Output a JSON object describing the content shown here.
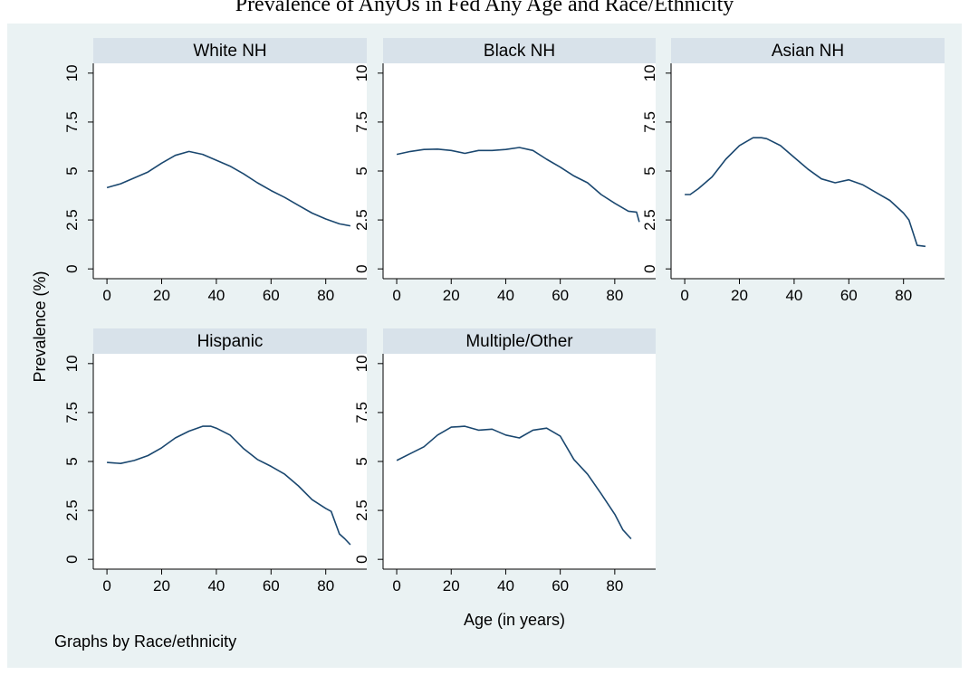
{
  "figure": {
    "title": "Prevalence of AnyOs in Fed Any Age and Race/Ethnicity",
    "ylabel": "Prevalence (%)",
    "xlabel": "Age (in years)",
    "note": "Graphs by Race/ethnicity",
    "colors": {
      "outer_bg": "#eaf2f3",
      "plot_bg": "#ffffff",
      "header_bg": "#d8e2ea",
      "line": "#1a476f",
      "axis": "#000000"
    }
  },
  "chart_data": {
    "type": "line",
    "layout": "facet-grid",
    "x_ticks": [
      "0",
      "20",
      "40",
      "60",
      "80"
    ],
    "y_ticks": [
      "0",
      "2.5",
      "5",
      "7.5",
      "10"
    ],
    "xlim": [
      -5,
      95
    ],
    "ylim": [
      -0.5,
      10.5
    ],
    "grid": false,
    "panels": [
      {
        "name": "White NH",
        "x": [
          0,
          5,
          10,
          15,
          20,
          25,
          30,
          35,
          40,
          45,
          50,
          55,
          60,
          65,
          70,
          75,
          80,
          85,
          89
        ],
        "y": [
          4.15,
          4.35,
          4.65,
          4.95,
          5.4,
          5.8,
          6.0,
          5.85,
          5.55,
          5.25,
          4.85,
          4.4,
          4.0,
          3.65,
          3.25,
          2.85,
          2.55,
          2.3,
          2.2
        ]
      },
      {
        "name": "Black NH",
        "x": [
          0,
          5,
          10,
          15,
          20,
          25,
          30,
          35,
          40,
          45,
          50,
          55,
          60,
          65,
          70,
          75,
          80,
          85,
          88,
          89
        ],
        "y": [
          5.85,
          6.0,
          6.1,
          6.12,
          6.05,
          5.9,
          6.05,
          6.05,
          6.1,
          6.2,
          6.05,
          5.6,
          5.2,
          4.75,
          4.4,
          3.8,
          3.35,
          2.95,
          2.9,
          2.4
        ]
      },
      {
        "name": "Asian NH",
        "x": [
          0,
          2,
          5,
          10,
          15,
          20,
          25,
          28,
          30,
          35,
          40,
          45,
          50,
          55,
          60,
          65,
          70,
          75,
          80,
          82,
          85,
          88
        ],
        "y": [
          3.8,
          3.8,
          4.1,
          4.7,
          5.6,
          6.3,
          6.7,
          6.7,
          6.65,
          6.3,
          5.7,
          5.1,
          4.6,
          4.4,
          4.55,
          4.3,
          3.9,
          3.5,
          2.85,
          2.5,
          1.2,
          1.15
        ]
      },
      {
        "name": "Hispanic",
        "x": [
          0,
          5,
          10,
          15,
          20,
          25,
          30,
          35,
          38,
          40,
          45,
          50,
          55,
          60,
          65,
          70,
          75,
          80,
          82,
          85,
          87,
          89
        ],
        "y": [
          4.95,
          4.9,
          5.05,
          5.3,
          5.7,
          6.2,
          6.55,
          6.8,
          6.8,
          6.7,
          6.35,
          5.65,
          5.1,
          4.75,
          4.35,
          3.75,
          3.05,
          2.6,
          2.45,
          1.3,
          1.05,
          0.75
        ]
      },
      {
        "name": "Multiple/Other",
        "x": [
          0,
          5,
          10,
          15,
          20,
          25,
          30,
          35,
          40,
          45,
          50,
          55,
          60,
          65,
          70,
          75,
          80,
          83,
          86
        ],
        "y": [
          5.05,
          5.4,
          5.75,
          6.35,
          6.75,
          6.8,
          6.6,
          6.65,
          6.35,
          6.2,
          6.6,
          6.7,
          6.3,
          5.1,
          4.35,
          3.35,
          2.3,
          1.5,
          1.05
        ]
      }
    ]
  }
}
